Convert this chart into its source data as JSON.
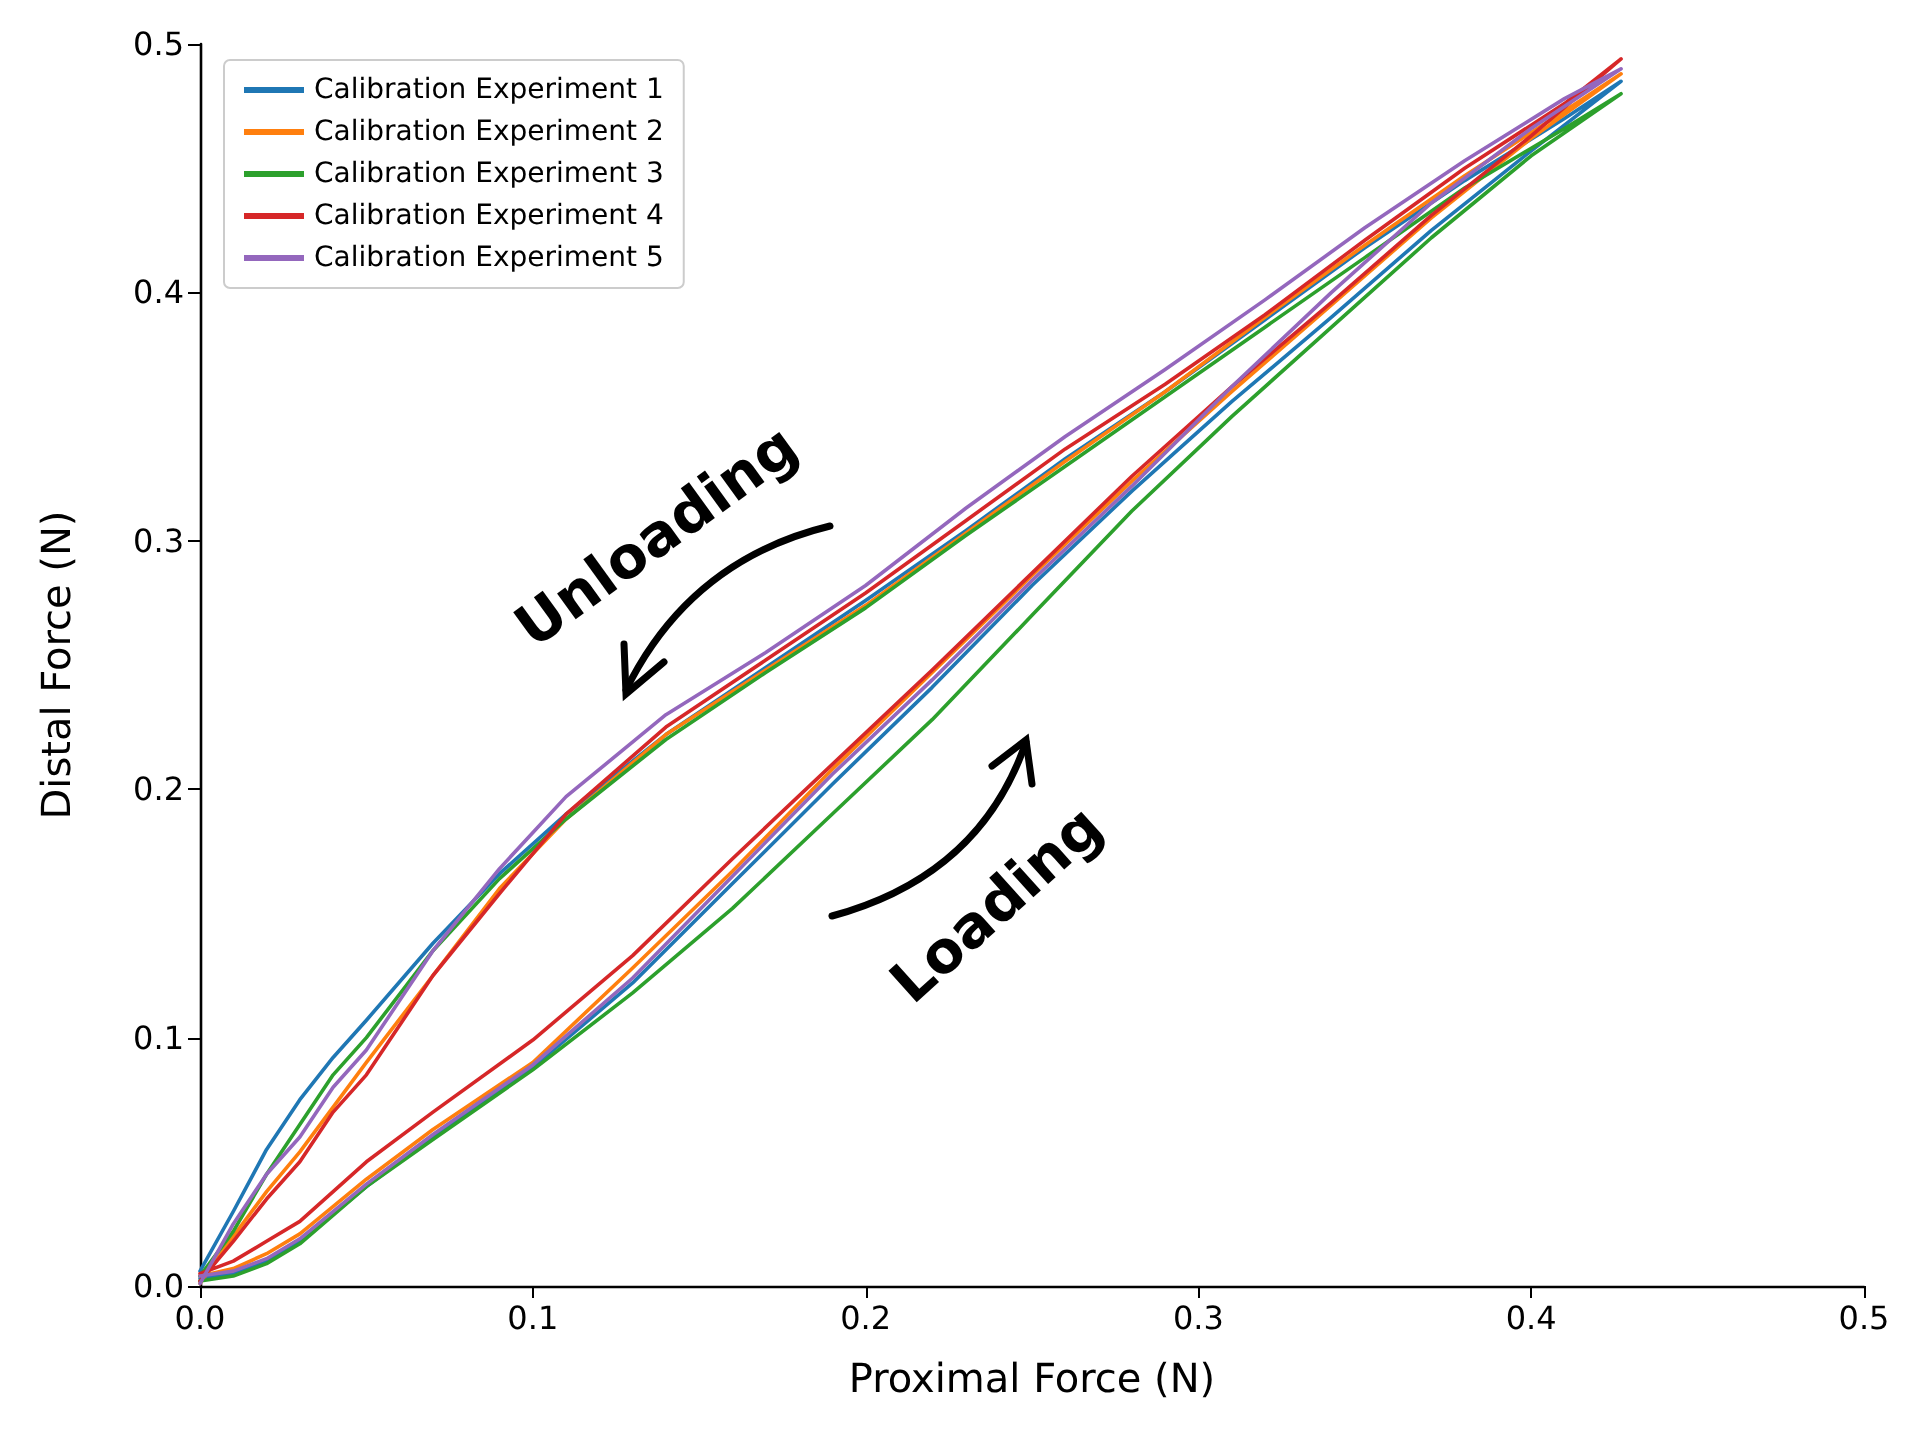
{
  "chart_data": {
    "type": "line",
    "xlabel": "Proximal Force (N)",
    "ylabel": "Distal Force (N)",
    "xlim": [
      0,
      0.5
    ],
    "ylim": [
      0,
      0.5
    ],
    "xticks": [
      {
        "value": 0,
        "label": "0.0"
      },
      {
        "value": 0.1,
        "label": "0.1"
      },
      {
        "value": 0.2,
        "label": "0.2"
      },
      {
        "value": 0.3,
        "label": "0.3"
      },
      {
        "value": 0.4,
        "label": "0.4"
      },
      {
        "value": 0.5,
        "label": "0.5"
      }
    ],
    "yticks": [
      {
        "value": 0,
        "label": "0.0"
      },
      {
        "value": 0.1,
        "label": "0.1"
      },
      {
        "value": 0.2,
        "label": "0.2"
      },
      {
        "value": 0.3,
        "label": "0.3"
      },
      {
        "value": 0.4,
        "label": "0.4"
      },
      {
        "value": 0.5,
        "label": "0.5"
      }
    ],
    "grid": false,
    "legend": "top left",
    "marker": "none",
    "line_style": "solid",
    "annotations": [
      "Unloading",
      "Loading"
    ],
    "series": [
      {
        "name": "Calibration Experiment 1",
        "color": "#1f77b4",
        "x": [
          0,
          0.01,
          0.02,
          0.03,
          0.05,
          0.07,
          0.1,
          0.13,
          0.16,
          0.19,
          0.22,
          0.25,
          0.28,
          0.31,
          0.34,
          0.37,
          0.4,
          0.427,
          0.41,
          0.38,
          0.35,
          0.32,
          0.29,
          0.26,
          0.23,
          0.2,
          0.17,
          0.14,
          0.11,
          0.09,
          0.07,
          0.05,
          0.04,
          0.03,
          0.02,
          0.01,
          0
        ],
        "values": [
          0.003,
          0.005,
          0.01,
          0.018,
          0.04,
          0.06,
          0.088,
          0.122,
          0.162,
          0.202,
          0.241,
          0.282,
          0.32,
          0.356,
          0.39,
          0.425,
          0.457,
          0.485,
          0.47,
          0.445,
          0.418,
          0.389,
          0.36,
          0.333,
          0.304,
          0.276,
          0.249,
          0.222,
          0.19,
          0.166,
          0.138,
          0.107,
          0.092,
          0.075,
          0.055,
          0.03,
          0.006
        ]
      },
      {
        "name": "Calibration Experiment 2",
        "color": "#ff7f0e",
        "x": [
          0,
          0.01,
          0.02,
          0.03,
          0.05,
          0.07,
          0.1,
          0.13,
          0.16,
          0.19,
          0.22,
          0.25,
          0.28,
          0.31,
          0.34,
          0.37,
          0.4,
          0.427,
          0.41,
          0.38,
          0.35,
          0.32,
          0.29,
          0.26,
          0.23,
          0.2,
          0.17,
          0.14,
          0.11,
          0.09,
          0.07,
          0.05,
          0.04,
          0.03,
          0.02,
          0.01,
          0
        ],
        "values": [
          0.004,
          0.007,
          0.013,
          0.021,
          0.043,
          0.063,
          0.09,
          0.128,
          0.167,
          0.208,
          0.247,
          0.286,
          0.324,
          0.36,
          0.395,
          0.43,
          0.462,
          0.488,
          0.473,
          0.447,
          0.419,
          0.39,
          0.36,
          0.332,
          0.303,
          0.274,
          0.248,
          0.222,
          0.188,
          0.16,
          0.125,
          0.09,
          0.072,
          0.054,
          0.038,
          0.02,
          0.001
        ]
      },
      {
        "name": "Calibration Experiment 3",
        "color": "#2ca02c",
        "x": [
          0,
          0.01,
          0.02,
          0.03,
          0.05,
          0.07,
          0.1,
          0.13,
          0.16,
          0.19,
          0.22,
          0.25,
          0.28,
          0.31,
          0.34,
          0.37,
          0.4,
          0.427,
          0.41,
          0.38,
          0.35,
          0.32,
          0.29,
          0.26,
          0.23,
          0.2,
          0.17,
          0.14,
          0.11,
          0.09,
          0.07,
          0.05,
          0.04,
          0.03,
          0.02,
          0.01,
          0
        ],
        "values": [
          0.002,
          0.004,
          0.009,
          0.017,
          0.04,
          0.059,
          0.087,
          0.118,
          0.152,
          0.19,
          0.228,
          0.27,
          0.312,
          0.35,
          0.386,
          0.422,
          0.455,
          0.48,
          0.466,
          0.442,
          0.414,
          0.386,
          0.358,
          0.33,
          0.302,
          0.273,
          0.247,
          0.22,
          0.188,
          0.164,
          0.135,
          0.1,
          0.085,
          0.065,
          0.045,
          0.022,
          0.004
        ]
      },
      {
        "name": "Calibration Experiment 4",
        "color": "#d62728",
        "x": [
          0,
          0.01,
          0.02,
          0.03,
          0.05,
          0.07,
          0.1,
          0.13,
          0.16,
          0.19,
          0.22,
          0.25,
          0.28,
          0.31,
          0.34,
          0.37,
          0.4,
          0.427,
          0.41,
          0.38,
          0.35,
          0.32,
          0.29,
          0.26,
          0.23,
          0.2,
          0.17,
          0.14,
          0.11,
          0.09,
          0.07,
          0.05,
          0.04,
          0.03,
          0.02,
          0.01,
          0
        ],
        "values": [
          0.005,
          0.01,
          0.018,
          0.026,
          0.05,
          0.07,
          0.099,
          0.133,
          0.172,
          0.21,
          0.248,
          0.287,
          0.326,
          0.362,
          0.396,
          0.431,
          0.463,
          0.494,
          0.476,
          0.45,
          0.421,
          0.391,
          0.363,
          0.337,
          0.308,
          0.279,
          0.252,
          0.225,
          0.19,
          0.158,
          0.125,
          0.085,
          0.07,
          0.05,
          0.035,
          0.018,
          0.002
        ]
      },
      {
        "name": "Calibration Experiment 5",
        "color": "#9467bd",
        "x": [
          0,
          0.01,
          0.02,
          0.03,
          0.05,
          0.07,
          0.1,
          0.13,
          0.16,
          0.19,
          0.22,
          0.25,
          0.28,
          0.31,
          0.34,
          0.37,
          0.4,
          0.427,
          0.41,
          0.38,
          0.35,
          0.32,
          0.29,
          0.26,
          0.23,
          0.2,
          0.17,
          0.14,
          0.11,
          0.09,
          0.07,
          0.05,
          0.04,
          0.03,
          0.02,
          0.01,
          0
        ],
        "values": [
          0.004,
          0.006,
          0.011,
          0.019,
          0.041,
          0.061,
          0.089,
          0.124,
          0.165,
          0.206,
          0.244,
          0.284,
          0.322,
          0.362,
          0.4,
          0.436,
          0.466,
          0.49,
          0.478,
          0.453,
          0.426,
          0.397,
          0.369,
          0.342,
          0.313,
          0.282,
          0.255,
          0.23,
          0.197,
          0.168,
          0.135,
          0.095,
          0.08,
          0.06,
          0.045,
          0.025,
          0.001
        ]
      }
    ]
  }
}
